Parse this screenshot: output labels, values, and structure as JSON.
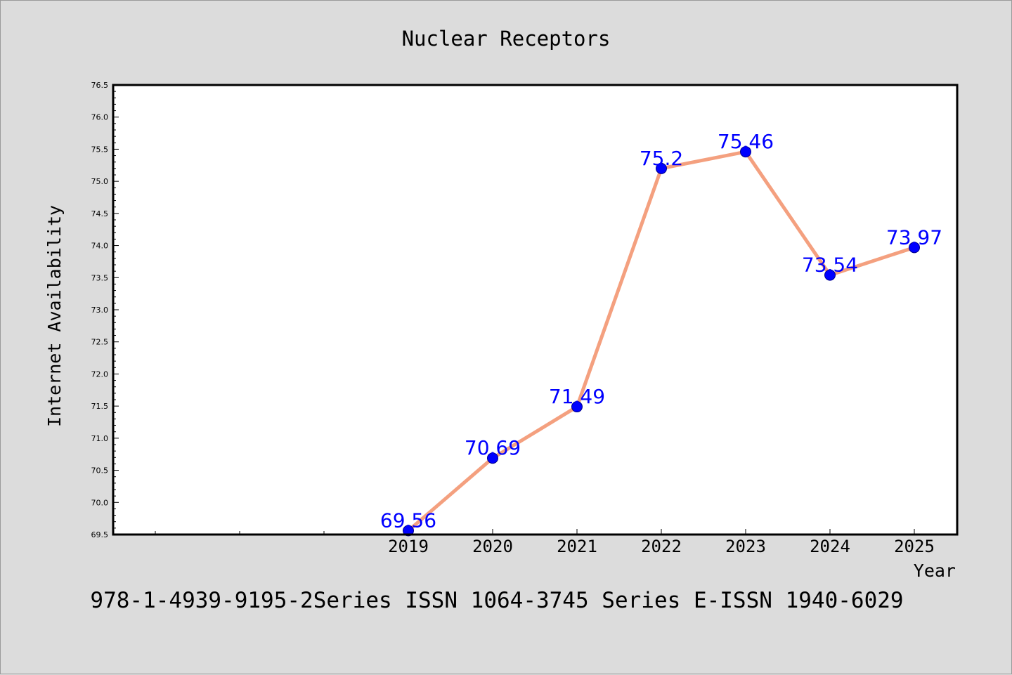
{
  "chart_data": {
    "type": "line",
    "title": "Nuclear Receptors",
    "xlabel": "Year",
    "ylabel": "Internet Availability",
    "x": [
      "2019",
      "2020",
      "2021",
      "2022",
      "2023",
      "2024",
      "2025"
    ],
    "values": [
      69.56,
      70.69,
      71.49,
      75.2,
      75.46,
      73.54,
      73.97
    ],
    "data_labels": [
      "69.56",
      "70.69",
      "71.49",
      "75.2",
      "75.46",
      "73.54",
      "73.97"
    ],
    "ylim": [
      69.5,
      76.5
    ],
    "yticks": [
      "69.5",
      "70.0",
      "70.5",
      "71.0",
      "71.5",
      "72.0",
      "72.5",
      "73.0",
      "73.5",
      "74.0",
      "74.5",
      "75.0",
      "75.5",
      "76.0",
      "76.5"
    ],
    "grid": false,
    "legend": "none",
    "colors": {
      "line": "#f4a07f",
      "marker": "#0000ff",
      "label": "#0000ff",
      "frame": "#000000",
      "background": "#dcdcdc",
      "plot_background": "#ffffff"
    }
  },
  "footer": "978-1-4939-9195-2Series ISSN 1064-3745 Series E-ISSN 1940-6029"
}
